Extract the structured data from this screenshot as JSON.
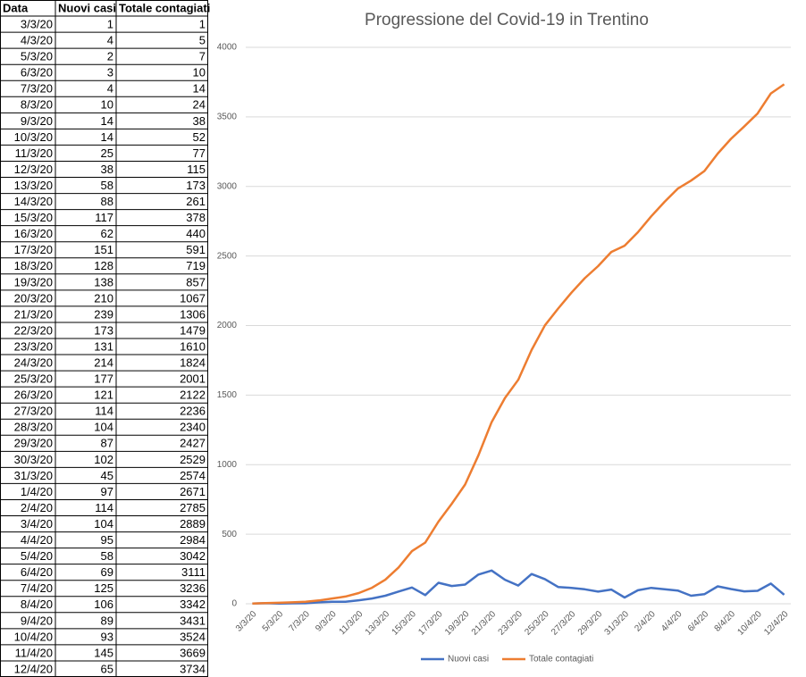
{
  "table": {
    "columns": [
      "Data",
      "Nuovi casi",
      "Totale contagiati"
    ]
  },
  "chart_data": {
    "type": "line",
    "title": "Progressione del Covid-19 in Trentino",
    "categories": [
      "3/3/20",
      "4/3/20",
      "5/3/20",
      "6/3/20",
      "7/3/20",
      "8/3/20",
      "9/3/20",
      "10/3/20",
      "11/3/20",
      "12/3/20",
      "13/3/20",
      "14/3/20",
      "15/3/20",
      "16/3/20",
      "17/3/20",
      "18/3/20",
      "19/3/20",
      "20/3/20",
      "21/3/20",
      "22/3/20",
      "23/3/20",
      "24/3/20",
      "25/3/20",
      "26/3/20",
      "27/3/20",
      "28/3/20",
      "29/3/20",
      "30/3/20",
      "31/3/20",
      "1/4/20",
      "2/4/20",
      "3/4/20",
      "4/4/20",
      "5/4/20",
      "6/4/20",
      "7/4/20",
      "8/4/20",
      "9/4/20",
      "10/4/20",
      "11/4/20",
      "12/4/20"
    ],
    "series": [
      {
        "name": "Nuovi casi",
        "color": "#4472c4",
        "values": [
          1,
          4,
          2,
          3,
          4,
          10,
          14,
          14,
          25,
          38,
          58,
          88,
          117,
          62,
          151,
          128,
          138,
          210,
          239,
          173,
          131,
          214,
          177,
          121,
          114,
          104,
          87,
          102,
          45,
          97,
          114,
          104,
          95,
          58,
          69,
          125,
          106,
          89,
          93,
          145,
          65
        ]
      },
      {
        "name": "Totale contagiati",
        "color": "#ed7d31",
        "values": [
          1,
          5,
          7,
          10,
          14,
          24,
          38,
          52,
          77,
          115,
          173,
          261,
          378,
          440,
          591,
          719,
          857,
          1067,
          1306,
          1479,
          1610,
          1824,
          2001,
          2122,
          2236,
          2340,
          2427,
          2529,
          2574,
          2671,
          2785,
          2889,
          2984,
          3042,
          3111,
          3236,
          3342,
          3431,
          3524,
          3669,
          3734
        ]
      }
    ],
    "ylim": [
      0,
      4000
    ],
    "yticks": [
      0,
      500,
      1000,
      1500,
      2000,
      2500,
      3000,
      3500,
      4000
    ],
    "grid": true,
    "legend": "bottom"
  }
}
